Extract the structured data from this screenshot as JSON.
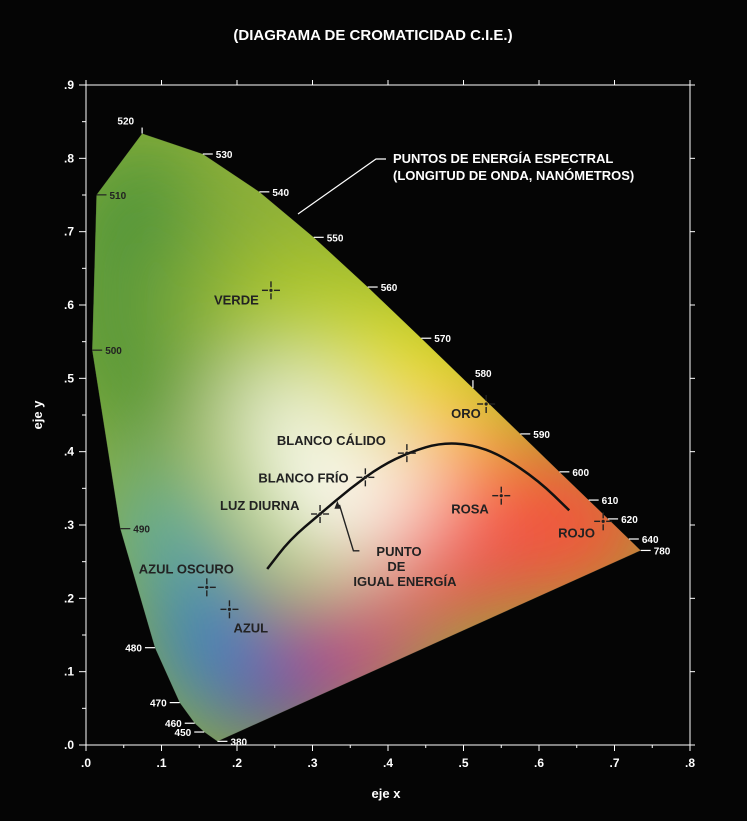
{
  "chart_data": {
    "type": "scatter",
    "title": "(DIAGRAMA DE CROMATICIDAD C.I.E.)",
    "xlabel": "eje x",
    "ylabel": "eje y",
    "xlim": [
      0,
      0.8
    ],
    "ylim": [
      0,
      0.9
    ],
    "x_ticks": [
      ".0",
      ".1",
      ".2",
      ".3",
      ".4",
      ".5",
      ".6",
      ".7",
      ".8"
    ],
    "y_ticks": [
      ".0",
      ".1",
      ".2",
      ".3",
      ".4",
      ".5",
      ".6",
      ".7",
      ".8",
      ".9"
    ],
    "grid": false,
    "locus_annotation": [
      "PUNTOS DE ENERGÍA ESPECTRAL",
      "(LONGITUD DE ONDA, NANÓMETROS)"
    ],
    "spectral_locus": [
      {
        "nm": "380",
        "x": 0.1741,
        "y": 0.005
      },
      {
        "nm": "450",
        "x": 0.1566,
        "y": 0.0177
      },
      {
        "nm": "460",
        "x": 0.144,
        "y": 0.0297
      },
      {
        "nm": "470",
        "x": 0.1241,
        "y": 0.0578
      },
      {
        "nm": "480",
        "x": 0.0913,
        "y": 0.1327
      },
      {
        "nm": "490",
        "x": 0.0454,
        "y": 0.295
      },
      {
        "nm": "500",
        "x": 0.0082,
        "y": 0.5384
      },
      {
        "nm": "510",
        "x": 0.0139,
        "y": 0.7502
      },
      {
        "nm": "520",
        "x": 0.0743,
        "y": 0.8338
      },
      {
        "nm": "530",
        "x": 0.1547,
        "y": 0.8059
      },
      {
        "nm": "540",
        "x": 0.2296,
        "y": 0.7543
      },
      {
        "nm": "550",
        "x": 0.3016,
        "y": 0.6923
      },
      {
        "nm": "560",
        "x": 0.3731,
        "y": 0.6245
      },
      {
        "nm": "570",
        "x": 0.4441,
        "y": 0.5547
      },
      {
        "nm": "580",
        "x": 0.5125,
        "y": 0.4866
      },
      {
        "nm": "590",
        "x": 0.5752,
        "y": 0.4242
      },
      {
        "nm": "600",
        "x": 0.627,
        "y": 0.3725
      },
      {
        "nm": "610",
        "x": 0.6658,
        "y": 0.334
      },
      {
        "nm": "620",
        "x": 0.6915,
        "y": 0.3083
      },
      {
        "nm": "640",
        "x": 0.719,
        "y": 0.2809
      },
      {
        "nm": "780",
        "x": 0.7347,
        "y": 0.2653
      }
    ],
    "planckian_locus": {
      "x": [
        0.24,
        0.27,
        0.31,
        0.35,
        0.39,
        0.43,
        0.47,
        0.51,
        0.55,
        0.6,
        0.64
      ],
      "y": [
        0.24,
        0.28,
        0.315,
        0.35,
        0.38,
        0.4,
        0.412,
        0.41,
        0.395,
        0.36,
        0.32
      ]
    },
    "points": [
      {
        "label": "VERDE",
        "x": 0.245,
        "y": 0.62
      },
      {
        "label": "ORO",
        "x": 0.53,
        "y": 0.465
      },
      {
        "label": "BLANCO CÁLIDO",
        "x": 0.425,
        "y": 0.398
      },
      {
        "label": "BLANCO FRÍO",
        "x": 0.37,
        "y": 0.365
      },
      {
        "label": "LUZ DIURNA",
        "x": 0.31,
        "y": 0.315
      },
      {
        "label": "ROSA",
        "x": 0.55,
        "y": 0.34
      },
      {
        "label": "ROJO",
        "x": 0.685,
        "y": 0.305
      },
      {
        "label": "AZUL OSCURO",
        "x": 0.16,
        "y": 0.215
      },
      {
        "label": "AZUL",
        "x": 0.19,
        "y": 0.185
      }
    ],
    "equal_energy_point": {
      "label": [
        "PUNTO",
        "DE",
        "IGUAL ENERGÍA"
      ],
      "x": 0.333,
      "y": 0.333
    }
  }
}
